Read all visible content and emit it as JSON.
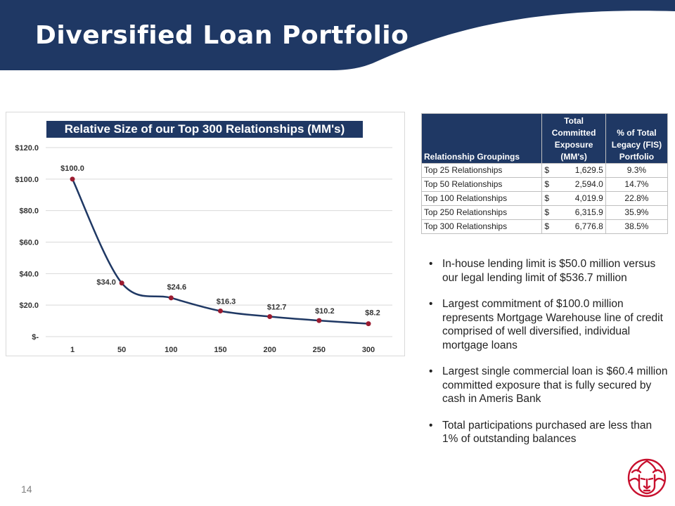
{
  "header": {
    "title": "Diversified Loan Portfolio",
    "band_color": "#1f3864"
  },
  "chart": {
    "title": "Relative Size of our Top 300 Relationships (MM's)",
    "line_color": "#1f3864",
    "marker_color": "#9b1b30"
  },
  "chart_data": {
    "type": "line",
    "title": "Relative Size of our Top 300 Relationships (MM's)",
    "xlabel": "",
    "ylabel": "",
    "categories": [
      "1",
      "50",
      "100",
      "150",
      "200",
      "250",
      "300"
    ],
    "values": [
      100.0,
      34.0,
      24.6,
      16.3,
      12.7,
      10.2,
      8.2
    ],
    "data_labels": [
      "$100.0",
      "$34.0",
      "$24.6",
      "$16.3",
      "$12.7",
      "$10.2",
      "$8.2"
    ],
    "ylim": [
      0,
      120
    ],
    "y_ticks": [
      "$-",
      "$20.0",
      "$40.0",
      "$60.0",
      "$80.0",
      "$100.0",
      "$120.0"
    ],
    "grid": true,
    "legend": "none",
    "smooth": true
  },
  "table": {
    "headers": [
      "Relationship Groupings",
      "Total Committed Exposure (MM's)",
      "% of Total Legacy (FIS) Portfolio"
    ],
    "rows": [
      {
        "group": "Top 25 Relationships",
        "currency": "$",
        "amount": "1,629.5",
        "pct": "9.3%"
      },
      {
        "group": "Top 50 Relationships",
        "currency": "$",
        "amount": "2,594.0",
        "pct": "14.7%"
      },
      {
        "group": "Top 100 Relationships",
        "currency": "$",
        "amount": "4,019.9",
        "pct": "22.8%"
      },
      {
        "group": "Top 250 Relationships",
        "currency": "$",
        "amount": "6,315.9",
        "pct": "35.9%"
      },
      {
        "group": "Top 300 Relationships",
        "currency": "$",
        "amount": "6,776.8",
        "pct": "38.5%"
      }
    ]
  },
  "bullets": [
    "In-house lending limit is $50.0 million versus our legal lending limit of $536.7 million",
    "Largest commitment of $100.0 million represents Mortgage Warehouse line of credit comprised of well diversified, individual mortgage loans",
    "Largest single commercial loan is $60.4 million committed exposure that is fully secured by cash in Ameris Bank",
    "Total participations purchased are less than 1% of outstanding balances"
  ],
  "bullet_symbol": "•",
  "footer": {
    "page_number": "14"
  },
  "logo": {
    "icon": "lion-head-icon",
    "color": "#c8102e"
  }
}
